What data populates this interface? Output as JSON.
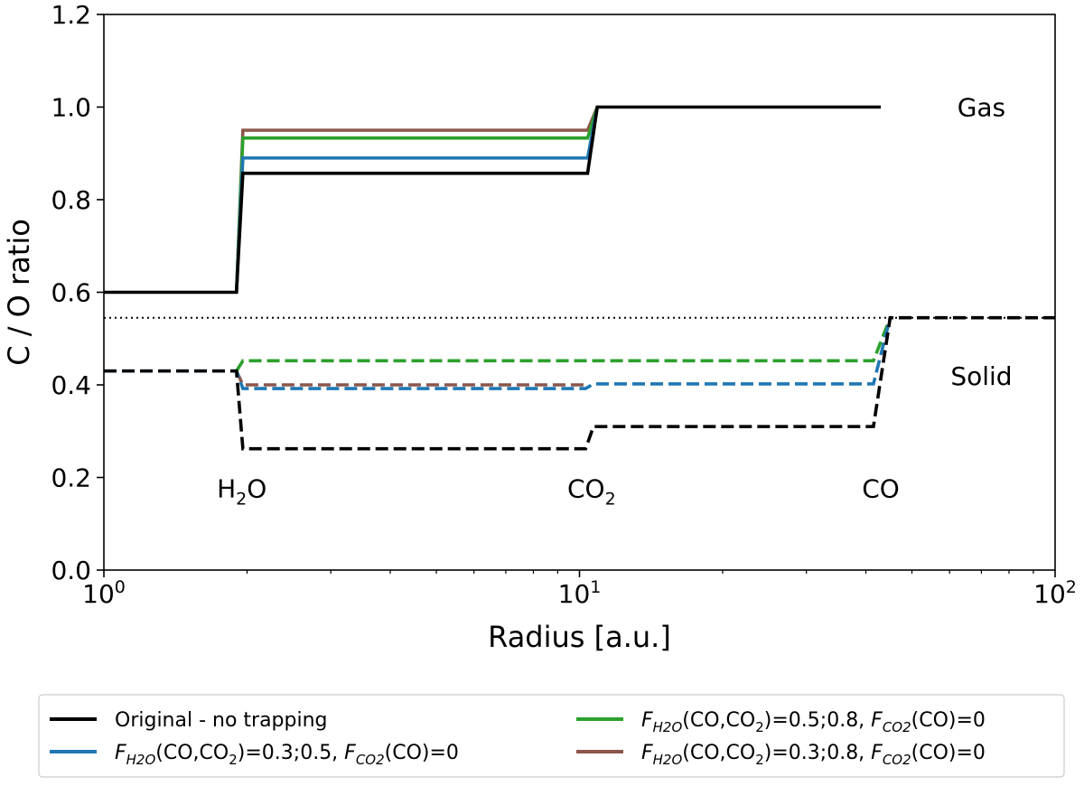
{
  "chart_data": {
    "type": "line",
    "xlabel": "Radius [a.u.]",
    "ylabel": "C / O ratio",
    "xscale": "log",
    "xlim": [
      1,
      100
    ],
    "ylim": [
      0,
      1.2
    ],
    "xticks": [
      {
        "value": 1,
        "base": "10",
        "exp": "0"
      },
      {
        "value": 10,
        "base": "10",
        "exp": "1"
      },
      {
        "value": 100,
        "base": "10",
        "exp": "2"
      }
    ],
    "yticks": [
      {
        "value": 0.0,
        "label": "0.0"
      },
      {
        "value": 0.2,
        "label": "0.2"
      },
      {
        "value": 0.4,
        "label": "0.4"
      },
      {
        "value": 0.6,
        "label": "0.6"
      },
      {
        "value": 0.8,
        "label": "0.8"
      },
      {
        "value": 1.0,
        "label": "1.0"
      },
      {
        "value": 1.2,
        "label": "1.2"
      }
    ],
    "grid": false,
    "reference_line": {
      "y": 0.545,
      "style": "dotted"
    },
    "region_labels": [
      {
        "text": "Gas",
        "x": 70,
        "y": 1.0
      },
      {
        "text": "Solid",
        "x": 70,
        "y": 0.42
      }
    ],
    "snowline_labels": [
      {
        "main": "H",
        "sub": "2",
        "tail": "O",
        "x": 1.95,
        "y": 0.2
      },
      {
        "main": "CO",
        "sub": "2",
        "tail": "",
        "x": 10.6,
        "y": 0.2
      },
      {
        "main": "CO",
        "sub": "",
        "tail": "",
        "x": 43,
        "y": 0.2
      }
    ],
    "legend_position": "bottom-outside",
    "series": [
      {
        "key": "original",
        "color": "#000000",
        "gas": [
          [
            1.0,
            0.6
          ],
          [
            1.9,
            0.6
          ],
          [
            1.96,
            0.857
          ],
          [
            10.4,
            0.857
          ],
          [
            10.9,
            1.0
          ],
          [
            43,
            1.0
          ]
        ],
        "solid": [
          [
            1.0,
            0.43
          ],
          [
            1.9,
            0.43
          ],
          [
            1.96,
            0.262
          ],
          [
            10.3,
            0.262
          ],
          [
            10.7,
            0.31
          ],
          [
            41.5,
            0.31
          ],
          [
            45,
            0.545
          ],
          [
            100,
            0.545
          ]
        ]
      },
      {
        "key": "f035",
        "color": "#1f77b4",
        "gas": [
          [
            1.9,
            0.6
          ],
          [
            1.96,
            0.89
          ],
          [
            10.4,
            0.89
          ],
          [
            10.9,
            1.0
          ]
        ],
        "solid": [
          [
            1.0,
            0.43
          ],
          [
            1.9,
            0.43
          ],
          [
            1.96,
            0.392
          ],
          [
            10.3,
            0.392
          ],
          [
            10.7,
            0.402
          ],
          [
            41.5,
            0.402
          ],
          [
            45,
            0.545
          ]
        ]
      },
      {
        "key": "f058",
        "color": "#2ca02c",
        "gas": [
          [
            1.9,
            0.6
          ],
          [
            1.96,
            0.933
          ],
          [
            10.4,
            0.933
          ],
          [
            10.9,
            1.0
          ]
        ],
        "solid": [
          [
            1.9,
            0.43
          ],
          [
            1.96,
            0.452
          ],
          [
            10.3,
            0.452
          ],
          [
            41.5,
            0.452
          ],
          [
            45,
            0.545
          ]
        ]
      },
      {
        "key": "f038",
        "color": "#8c564b",
        "gas": [
          [
            1.9,
            0.6
          ],
          [
            1.96,
            0.95
          ],
          [
            10.4,
            0.95
          ],
          [
            10.9,
            1.0
          ]
        ],
        "solid": [
          [
            1.9,
            0.43
          ],
          [
            1.96,
            0.4
          ],
          [
            10.3,
            0.4
          ]
        ]
      }
    ],
    "legend": [
      {
        "key": "original",
        "color": "#000000",
        "text": "Original - no trapping"
      },
      {
        "key": "f035",
        "color": "#1f77b4",
        "f1": "F",
        "s1": "H2O",
        "t1": "(CO,CO",
        "s1b": "2",
        "t1b": ")=0.3;0.5, ",
        "f2": "F",
        "s2": "CO2",
        "t2": "(CO)=0"
      },
      {
        "key": "f058",
        "color": "#2ca02c",
        "f1": "F",
        "s1": "H2O",
        "t1": "(CO,CO",
        "s1b": "2",
        "t1b": ")=0.5;0.8, ",
        "f2": "F",
        "s2": "CO2",
        "t2": "(CO)=0"
      },
      {
        "key": "f038",
        "color": "#8c564b",
        "f1": "F",
        "s1": "H2O",
        "t1": "(CO,CO",
        "s1b": "2",
        "t1b": ")=0.3;0.8, ",
        "f2": "F",
        "s2": "CO2",
        "t2": "(CO)=0"
      }
    ]
  }
}
